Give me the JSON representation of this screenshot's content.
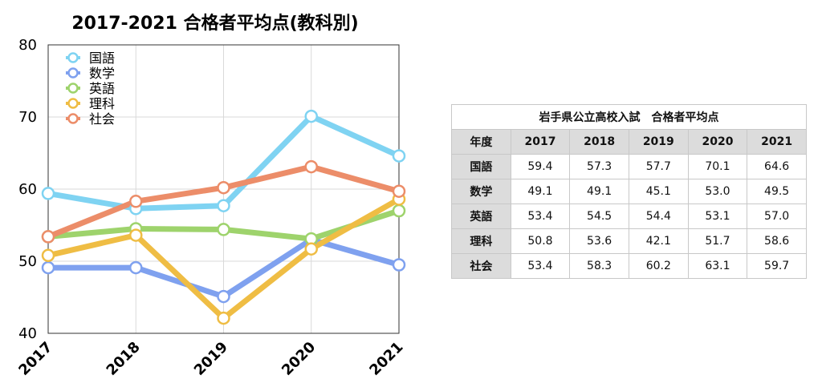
{
  "chart_data": {
    "type": "line",
    "title": "2017-2021 合格者平均点(教科別)",
    "categories": [
      "2017",
      "2018",
      "2019",
      "2020",
      "2021"
    ],
    "ylim": [
      40,
      80
    ],
    "yticks": [
      40,
      50,
      60,
      70,
      80
    ],
    "grid": true,
    "legend": "top-left",
    "series": [
      {
        "name": "国語",
        "color": "#7fd3f2",
        "values": [
          59.4,
          57.3,
          57.7,
          70.1,
          64.6
        ]
      },
      {
        "name": "数学",
        "color": "#7fa1ef",
        "values": [
          49.1,
          49.1,
          45.1,
          53.0,
          49.5
        ]
      },
      {
        "name": "英語",
        "color": "#9ed36c",
        "values": [
          53.4,
          54.5,
          54.4,
          53.1,
          57.0
        ]
      },
      {
        "name": "理科",
        "color": "#efbd44",
        "values": [
          50.8,
          53.6,
          42.1,
          51.7,
          58.6
        ]
      },
      {
        "name": "社会",
        "color": "#ec8d69",
        "values": [
          53.4,
          58.3,
          60.2,
          63.1,
          59.7
        ]
      }
    ]
  },
  "table": {
    "title": "岩手県公立高校入試　合格者平均点",
    "corner": "年度",
    "years": [
      "2017",
      "2018",
      "2019",
      "2020",
      "2021"
    ],
    "rows": [
      {
        "subject": "国語",
        "values": [
          "59.4",
          "57.3",
          "57.7",
          "70.1",
          "64.6"
        ]
      },
      {
        "subject": "数学",
        "values": [
          "49.1",
          "49.1",
          "45.1",
          "53.0",
          "49.5"
        ]
      },
      {
        "subject": "英語",
        "values": [
          "53.4",
          "54.5",
          "54.4",
          "53.1",
          "57.0"
        ]
      },
      {
        "subject": "理科",
        "values": [
          "50.8",
          "53.6",
          "42.1",
          "51.7",
          "58.6"
        ]
      },
      {
        "subject": "社会",
        "values": [
          "53.4",
          "58.3",
          "60.2",
          "63.1",
          "59.7"
        ]
      }
    ]
  }
}
